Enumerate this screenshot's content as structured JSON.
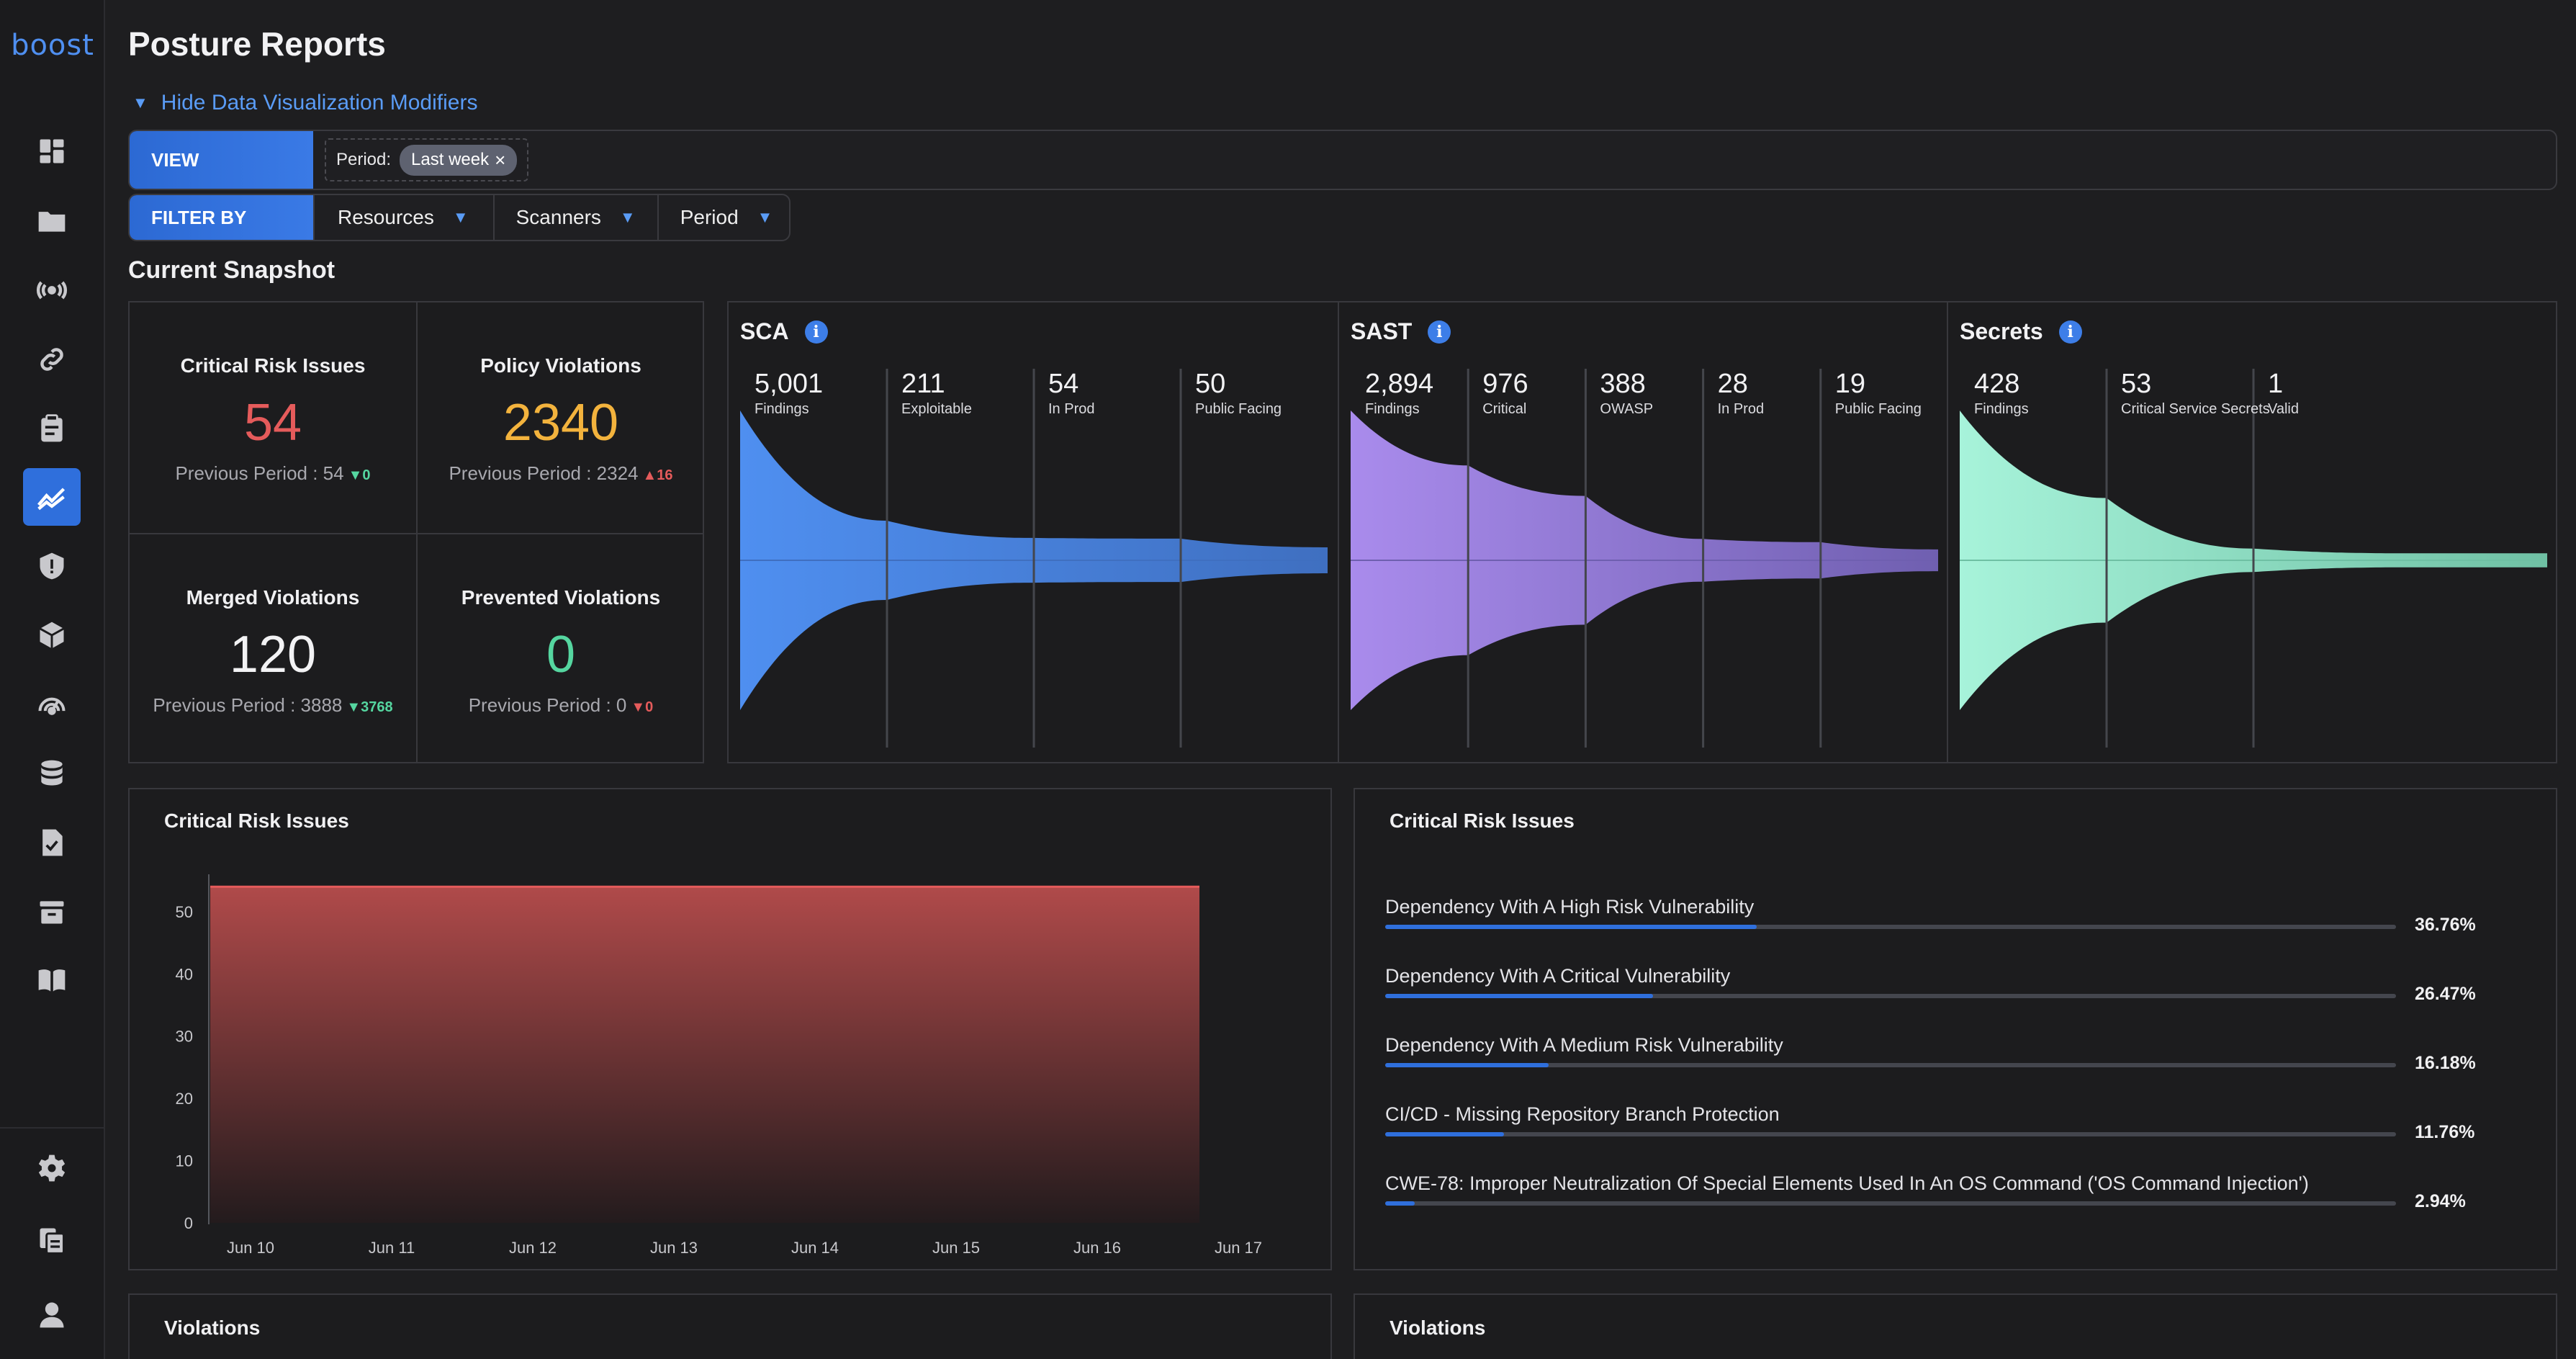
{
  "sidebar": {
    "logo": "boost",
    "items": [
      {
        "icon": "dashboard-icon"
      },
      {
        "icon": "folder-icon"
      },
      {
        "icon": "broadcast-icon"
      },
      {
        "icon": "link-icon"
      },
      {
        "icon": "clipboard-icon"
      },
      {
        "icon": "chart-trend-icon",
        "active": true
      },
      {
        "icon": "shield-alert-icon"
      },
      {
        "icon": "package-icon"
      },
      {
        "icon": "radar-icon"
      },
      {
        "icon": "database-icon"
      },
      {
        "icon": "document-check-icon"
      },
      {
        "icon": "archive-icon"
      },
      {
        "icon": "book-icon"
      }
    ],
    "bottom": [
      {
        "icon": "gear-icon"
      },
      {
        "icon": "copy-icon"
      },
      {
        "icon": "user-icon"
      }
    ]
  },
  "header": {
    "title": "Posture Reports",
    "toggle": "Hide Data Visualization Modifiers"
  },
  "view": {
    "label": "VIEW",
    "chip_label": "Period:",
    "chip_value": "Last week"
  },
  "filter": {
    "label": "FILTER BY",
    "items": [
      "Resources",
      "Scanners",
      "Period"
    ]
  },
  "snapshot": {
    "title": "Current Snapshot",
    "stats": [
      {
        "label": "Critical Risk Issues",
        "value": "54",
        "color": "#e55b5b",
        "prev": "Previous Period : 54",
        "delta": "0",
        "delta_dir": "down",
        "delta_color": "#55d6a0"
      },
      {
        "label": "Policy Violations",
        "value": "2340",
        "color": "#f3b33d",
        "prev": "Previous Period : 2324",
        "delta": "16",
        "delta_dir": "up",
        "delta_color": "#e55b5b"
      },
      {
        "label": "Merged Violations",
        "value": "120",
        "color": "#f2f2f4",
        "prev": "Previous Period : 3888",
        "delta": "3768",
        "delta_dir": "down",
        "delta_color": "#55d6a0"
      },
      {
        "label": "Prevented Violations",
        "value": "0",
        "color": "#55d6a0",
        "prev": "Previous Period : 0",
        "delta": "0",
        "delta_dir": "down",
        "delta_color": "#e55b5b"
      }
    ]
  },
  "funnels": [
    {
      "title": "SCA",
      "color_start": "#4f8ff0",
      "color_end": "#3f6fc0",
      "stages": [
        {
          "value": "5,001",
          "label": "Findings",
          "n": 5001
        },
        {
          "value": "211",
          "label": "Exploitable",
          "n": 211
        },
        {
          "value": "54",
          "label": "In Prod",
          "n": 54
        },
        {
          "value": "50",
          "label": "Public Facing",
          "n": 50
        }
      ]
    },
    {
      "title": "SAST",
      "color_start": "#a98bec",
      "color_end": "#6f5fb0",
      "stages": [
        {
          "value": "2,894",
          "label": "Findings",
          "n": 2894
        },
        {
          "value": "976",
          "label": "Critical",
          "n": 976
        },
        {
          "value": "388",
          "label": "OWASP",
          "n": 388
        },
        {
          "value": "28",
          "label": "In Prod",
          "n": 28
        },
        {
          "value": "19",
          "label": "Public Facing",
          "n": 19
        }
      ]
    },
    {
      "title": "Secrets",
      "color_start": "#a7f3da",
      "color_end": "#6fc0a4",
      "stages": [
        {
          "value": "428",
          "label": "Findings",
          "n": 428
        },
        {
          "value": "53",
          "label": "Critical Service Secrets",
          "n": 53
        },
        {
          "value": "1",
          "label": "Valid",
          "n": 1
        }
      ]
    }
  ],
  "critical_chart": {
    "title": "Critical Risk Issues",
    "chart_data": {
      "type": "area",
      "x": [
        "Jun 10",
        "Jun 11",
        "Jun 12",
        "Jun 13",
        "Jun 14",
        "Jun 15",
        "Jun 16",
        "Jun 17"
      ],
      "series": [
        {
          "values": [
            54,
            54,
            54,
            54,
            54,
            54,
            54,
            54
          ]
        }
      ],
      "x_end": "Jun 17",
      "yticks": [
        0,
        10,
        20,
        30,
        40,
        50
      ],
      "ylim": [
        0,
        56
      ],
      "color": "#e55b5b"
    }
  },
  "critical_list": {
    "title": "Critical Risk Issues",
    "chart_data": {
      "type": "bar",
      "categories": [
        "Dependency With A High Risk Vulnerability",
        "Dependency With A Critical Vulnerability",
        "Dependency With A Medium Risk Vulnerability",
        "CI/CD - Missing Repository Branch Protection",
        "CWE-78: Improper Neutralization Of Special Elements Used In An OS Command ('OS Command Injection')"
      ],
      "values": [
        36.76,
        26.47,
        16.18,
        11.76,
        2.94
      ],
      "labels": [
        "36.76%",
        "26.47%",
        "16.18%",
        "11.76%",
        "2.94%"
      ],
      "color": "#2f6fdc"
    }
  },
  "violations_left": {
    "title": "Violations"
  },
  "violations_right": {
    "title": "Violations"
  }
}
